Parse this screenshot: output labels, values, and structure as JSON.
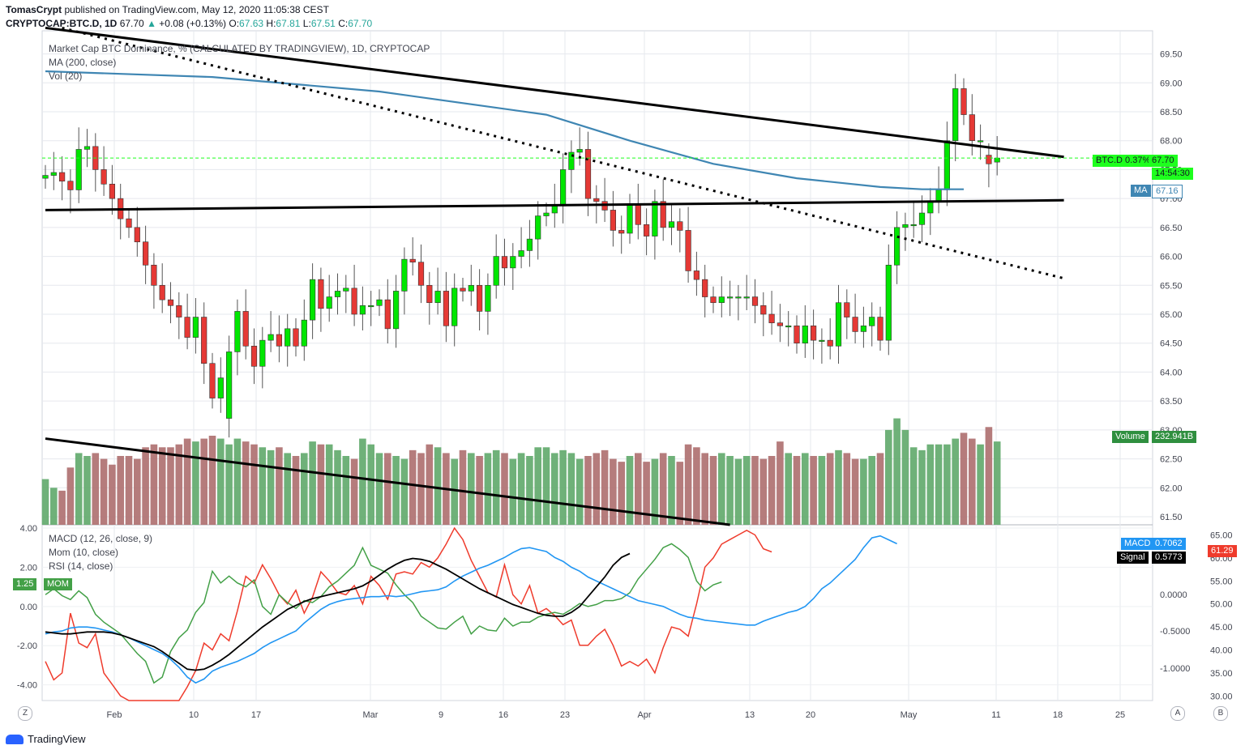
{
  "header": {
    "author": "TomasCrypt",
    "published": "published on TradingView.com, May 12, 2020 11:05:38 CEST",
    "symbol": "CRYPTOCAP:BTC.D, 1D",
    "last": "67.70",
    "change": "+0.08 (+0.13%)",
    "o_label": "O:",
    "o": "67.63",
    "h_label": "H:",
    "h": "67.81",
    "l_label": "L:",
    "l": "67.51",
    "c_label": "C:",
    "c": "67.70"
  },
  "indicators_main": [
    "Market Cap BTC Dominance, % (CALCULATED BY TRADINGVIEW), 1D, CRYPTOCAP",
    "MA (200, close)",
    "Vol (20)"
  ],
  "indicators_lower": [
    "MACD (12, 26, close, 9)",
    "Mom (10, close)",
    "RSI (14, close)"
  ],
  "badges": {
    "price": "BTC.D 0.37%",
    "price_value": "67.70",
    "countdown": "14:54:30",
    "ma_label": "MA",
    "ma_value": "67.16",
    "vol_label": "Volume",
    "vol_value": "232.941B",
    "macd_label": "MACD",
    "macd_value": "0.7062",
    "signal_label": "Signal",
    "signal_value": "0.5773",
    "rsi_value": "61.29",
    "mom_value": "1.25",
    "mom_label": "MOM"
  },
  "footer": {
    "brand": "TradingView",
    "left_btn": "Z",
    "right_btn_a": "A",
    "right_btn_b": "B"
  },
  "colors": {
    "up": "#00e600",
    "down": "#e53935",
    "vol_up": "#5fa86a",
    "vol_down": "#ad6e6e",
    "ma": "#3f86b3",
    "macd": "#2196f3",
    "signal": "#000000",
    "rsi": "#ef3b2c",
    "mom": "#43a047"
  },
  "chart_data": {
    "type": "candlestick",
    "x_ticks": [
      "Feb",
      "10",
      "17",
      "Mar",
      "9",
      "16",
      "23",
      "Apr",
      "13",
      "20",
      "May",
      "11",
      "18",
      "25"
    ],
    "price_ticks": [
      "69.50",
      "69.00",
      "68.50",
      "68.00",
      "67.50",
      "67.00",
      "66.50",
      "66.00",
      "65.50",
      "65.00",
      "64.50",
      "64.00",
      "63.50",
      "63.00",
      "62.50",
      "62.00",
      "61.50"
    ],
    "price_range": [
      61.36,
      69.9
    ],
    "macd_ticks_left": [
      "4.00",
      "2.00",
      "0.00",
      "-2.00",
      "-4.00"
    ],
    "macd_range": [
      -4.8,
      4.0
    ],
    "rsi_ticks_right": [
      "65.00",
      "60.00",
      "55.00",
      "50.00",
      "45.00",
      "40.00",
      "35.00",
      "30.00"
    ],
    "rsi_range": [
      29,
      66.5
    ],
    "osc_ticks_right": [
      "0.0000",
      "-0.5000",
      "-1.0000"
    ],
    "closes": [
      67.4,
      67.45,
      67.3,
      67.15,
      67.85,
      67.9,
      67.5,
      67.25,
      67.0,
      66.65,
      66.5,
      66.25,
      65.85,
      65.5,
      65.25,
      65.15,
      64.95,
      64.6,
      64.95,
      64.15,
      63.55,
      63.9,
      64.35,
      65.05,
      64.45,
      64.1,
      64.55,
      64.65,
      64.45,
      64.75,
      64.45,
      64.9,
      65.6,
      65.1,
      65.3,
      65.4,
      65.45,
      65.0,
      65.15,
      65.15,
      65.25,
      64.75,
      65.4,
      65.95,
      65.9,
      65.5,
      65.2,
      65.4,
      64.8,
      65.45,
      65.4,
      65.5,
      65.05,
      65.5,
      66.0,
      65.8,
      66.0,
      66.1,
      66.3,
      66.7,
      66.75,
      66.9,
      67.5,
      67.8,
      67.85,
      67.0,
      66.95,
      66.8,
      66.45,
      66.4,
      66.9,
      66.55,
      66.35,
      66.95,
      66.5,
      66.6,
      66.45,
      65.75,
      65.6,
      65.3,
      65.2,
      65.3,
      65.3,
      65.3,
      65.3,
      65.15,
      65.0,
      64.85,
      64.8,
      64.8,
      64.5,
      64.8,
      64.55,
      64.55,
      64.45,
      65.2,
      64.95,
      64.7,
      64.8,
      64.95,
      64.55,
      65.85,
      66.5,
      66.55,
      66.55,
      66.75,
      66.95,
      67.15,
      68.0,
      68.9,
      68.45,
      68.0,
      68.0,
      67.6,
      67.7
    ],
    "opens": [
      67.35,
      67.4,
      67.45,
      67.3,
      67.15,
      67.85,
      67.9,
      67.5,
      67.25,
      67.0,
      66.65,
      66.5,
      66.25,
      65.85,
      65.5,
      65.25,
      65.15,
      64.95,
      64.6,
      64.95,
      64.15,
      63.55,
      63.2,
      64.35,
      65.05,
      64.45,
      64.1,
      64.55,
      64.65,
      64.45,
      64.75,
      64.45,
      64.9,
      65.6,
      65.1,
      65.3,
      65.4,
      65.45,
      65.0,
      65.15,
      65.15,
      65.25,
      64.75,
      65.4,
      65.95,
      65.9,
      65.5,
      65.2,
      65.4,
      64.8,
      65.45,
      65.4,
      65.5,
      65.05,
      65.5,
      66.0,
      65.8,
      66.0,
      66.1,
      66.3,
      66.7,
      66.75,
      66.9,
      67.5,
      67.8,
      67.85,
      67.0,
      66.95,
      66.8,
      66.45,
      66.4,
      66.9,
      66.55,
      66.35,
      66.95,
      66.5,
      66.6,
      66.45,
      65.75,
      65.6,
      65.3,
      65.2,
      65.3,
      65.3,
      65.3,
      65.3,
      65.15,
      65.0,
      64.85,
      64.8,
      64.8,
      64.5,
      64.8,
      64.55,
      64.55,
      64.45,
      65.2,
      64.95,
      64.7,
      64.8,
      64.95,
      64.55,
      65.85,
      66.5,
      66.55,
      66.55,
      66.75,
      66.95,
      67.15,
      68.0,
      68.9,
      68.45,
      68.0,
      67.75,
      67.63
    ],
    "volume_units": "B",
    "volumes": [
      62.15,
      62.0,
      61.95,
      62.35,
      62.6,
      62.55,
      62.6,
      62.5,
      62.4,
      62.55,
      62.55,
      62.5,
      62.7,
      62.75,
      62.7,
      62.7,
      62.75,
      62.85,
      62.8,
      62.85,
      62.9,
      62.85,
      62.75,
      62.85,
      62.8,
      62.75,
      62.7,
      62.65,
      62.7,
      62.6,
      62.55,
      62.6,
      62.8,
      62.75,
      62.75,
      62.65,
      62.55,
      62.5,
      62.85,
      62.75,
      62.6,
      62.6,
      62.55,
      62.5,
      62.65,
      62.6,
      62.75,
      62.7,
      62.6,
      62.5,
      62.65,
      62.6,
      62.55,
      62.6,
      62.65,
      62.6,
      62.5,
      62.6,
      62.55,
      62.7,
      62.7,
      62.6,
      62.65,
      62.6,
      62.5,
      62.55,
      62.6,
      62.65,
      62.5,
      62.45,
      62.55,
      62.6,
      62.45,
      62.5,
      62.6,
      62.55,
      62.45,
      62.75,
      62.7,
      62.6,
      62.55,
      62.6,
      62.55,
      62.5,
      62.55,
      62.55,
      62.5,
      62.55,
      62.8,
      62.6,
      62.55,
      62.6,
      62.55,
      62.55,
      62.6,
      62.65,
      62.6,
      62.5,
      62.5,
      62.55,
      62.6,
      63.0,
      63.2,
      63.0,
      62.7,
      62.65,
      62.75,
      62.75,
      62.75,
      62.85,
      62.95,
      62.85,
      62.75,
      63.05,
      62.8
    ],
    "ma200_points": [
      [
        0,
        69.2
      ],
      [
        20,
        69.1
      ],
      [
        40,
        68.85
      ],
      [
        60,
        68.45
      ],
      [
        70,
        68.0
      ],
      [
        80,
        67.6
      ],
      [
        90,
        67.35
      ],
      [
        100,
        67.2
      ],
      [
        105,
        67.16
      ],
      [
        110,
        67.16
      ]
    ],
    "trendlines": [
      {
        "style": "solid",
        "from": [
          0,
          69.95
        ],
        "to": [
          122,
          67.72
        ]
      },
      {
        "style": "solid",
        "from": [
          0,
          66.8
        ],
        "to": [
          122,
          66.97
        ]
      },
      {
        "style": "solid",
        "from": [
          0,
          62.85
        ],
        "to": [
          82,
          61.36
        ]
      },
      {
        "style": "dotted",
        "from": [
          2,
          69.95
        ],
        "to": [
          122,
          65.62
        ]
      }
    ],
    "macd_line": [
      -1.4,
      -1.3,
      -1.25,
      -1.1,
      -1.05,
      -1.05,
      -1.1,
      -1.2,
      -1.3,
      -1.45,
      -1.6,
      -1.8,
      -2.0,
      -2.2,
      -2.4,
      -2.7,
      -3.1,
      -3.6,
      -3.9,
      -3.7,
      -3.3,
      -3.1,
      -2.95,
      -2.8,
      -2.6,
      -2.4,
      -2.1,
      -1.85,
      -1.65,
      -1.45,
      -1.25,
      -0.85,
      -0.5,
      -0.15,
      0.1,
      0.25,
      0.35,
      0.4,
      0.45,
      0.5,
      0.5,
      0.55,
      0.5,
      0.55,
      0.65,
      0.75,
      0.8,
      0.85,
      1.0,
      1.3,
      1.55,
      1.75,
      1.95,
      2.1,
      2.3,
      2.5,
      2.75,
      2.95,
      3.0,
      2.9,
      2.8,
      2.5,
      2.3,
      2.0,
      1.8,
      1.5,
      1.3,
      1.1,
      0.9,
      0.7,
      0.5,
      0.3,
      0.2,
      0.1,
      0.0,
      -0.2,
      -0.4,
      -0.55,
      -0.6,
      -0.7,
      -0.75,
      -0.8,
      -0.85,
      -0.9,
      -0.95,
      -0.95,
      -0.75,
      -0.6,
      -0.45,
      -0.3,
      -0.2,
      0.0,
      0.4,
      0.9,
      1.2,
      1.6,
      2.0,
      2.4,
      3.0,
      3.5,
      3.6,
      3.4,
      3.2
    ],
    "signal_line": [
      -1.3,
      -1.35,
      -1.4,
      -1.4,
      -1.35,
      -1.3,
      -1.3,
      -1.3,
      -1.35,
      -1.45,
      -1.6,
      -1.75,
      -1.9,
      -2.05,
      -2.3,
      -2.6,
      -2.9,
      -3.2,
      -3.25,
      -3.2,
      -3.0,
      -2.75,
      -2.45,
      -2.1,
      -1.75,
      -1.4,
      -1.05,
      -0.75,
      -0.45,
      -0.15,
      0.05,
      0.25,
      0.4,
      0.5,
      0.6,
      0.7,
      0.8,
      0.9,
      1.05,
      1.3,
      1.6,
      1.9,
      2.15,
      2.35,
      2.45,
      2.4,
      2.3,
      2.1,
      1.9,
      1.65,
      1.4,
      1.15,
      0.9,
      0.7,
      0.5,
      0.3,
      0.1,
      -0.05,
      -0.2,
      -0.35,
      -0.45,
      -0.5,
      -0.5,
      -0.3,
      0.0,
      0.5,
      1.0,
      1.5,
      2.1,
      2.5,
      2.7
    ],
    "rsi_line": [
      37.5,
      33.5,
      35.0,
      48.0,
      41.5,
      40.5,
      43.5,
      35.0,
      32.5,
      30.0,
      27.0,
      24.0,
      20.0,
      18.0,
      23.0,
      20.0,
      25.0,
      32.0,
      35.5,
      41.5,
      40.0,
      43.5,
      42.0,
      48.5,
      56.0,
      54.5,
      58.5,
      55.5,
      52.0,
      50.0,
      53.0,
      48.0,
      51.5,
      57.0,
      55.0,
      52.5,
      52.0,
      54.0,
      50.0,
      56.0,
      54.0,
      51.0,
      56.5,
      57.0,
      56.5,
      59.0,
      58.0,
      60.0,
      63.0,
      66.5,
      64.0,
      59.5,
      56.0,
      52.5,
      51.5,
      58.5,
      52.0,
      50.0,
      54.0,
      48.0,
      49.0,
      47.5,
      45.5,
      46.5,
      41.0,
      41.0,
      43.0,
      44.5,
      41.0,
      36.5,
      37.5,
      36.5,
      38.0,
      35.0,
      40.5,
      45.0,
      44.5,
      43.0,
      50.0,
      58.0,
      60.0,
      63.0,
      64.0,
      65.0,
      66.0,
      65.0,
      62.0,
      61.3
    ],
    "mom_line": [
      0.6,
      0.9,
      0.55,
      0.35,
      0.8,
      0.45,
      -0.4,
      -0.8,
      -1.1,
      -1.4,
      -1.9,
      -2.4,
      -2.8,
      -3.9,
      -3.6,
      -2.3,
      -1.6,
      -1.2,
      -0.3,
      0.2,
      1.8,
      1.2,
      1.55,
      1.2,
      1.0,
      1.35,
      0.0,
      -0.4,
      0.6,
      0.2,
      -0.1,
      0.3,
      0.2,
      0.5,
      1.0,
      1.3,
      1.7,
      2.1,
      3.0,
      2.1,
      1.9,
      1.7,
      1.1,
      0.6,
      0.2,
      -0.5,
      -0.8,
      -1.1,
      -1.15,
      -0.8,
      -0.5,
      -1.4,
      -1.0,
      -1.2,
      -1.25,
      -0.6,
      -1.0,
      -0.8,
      -0.8,
      -0.55,
      -0.4,
      -0.3,
      -0.4,
      -0.15,
      0.15,
      0.0,
      0.1,
      0.3,
      0.3,
      0.4,
      0.7,
      1.4,
      1.9,
      2.4,
      3.0,
      3.2,
      2.9,
      2.5,
      1.3,
      0.8,
      1.1,
      1.25
    ]
  }
}
